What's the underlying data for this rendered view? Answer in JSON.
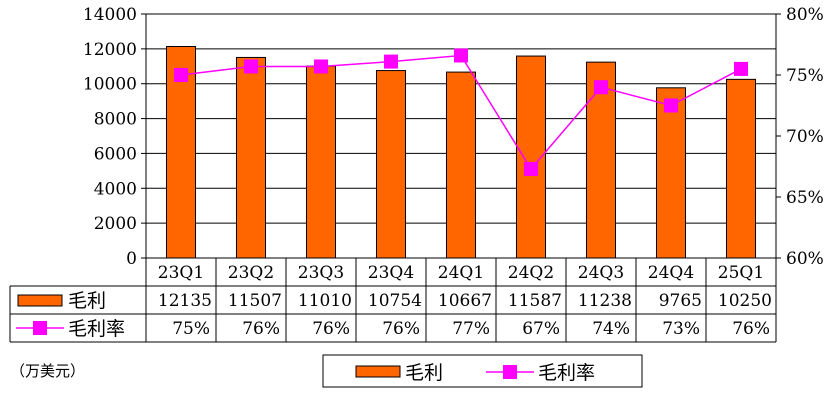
{
  "chart_data": {
    "type": "bar",
    "categories": [
      "23Q1",
      "23Q2",
      "23Q3",
      "23Q4",
      "24Q1",
      "24Q2",
      "24Q3",
      "24Q4",
      "25Q1"
    ],
    "series": [
      {
        "name": "毛利",
        "type": "bar",
        "axis": "left",
        "color": "#ff6600",
        "values": [
          12135,
          11507,
          11010,
          10754,
          10667,
          11587,
          11238,
          9765,
          10250
        ]
      },
      {
        "name": "毛利率",
        "type": "line",
        "axis": "right",
        "color": "#ff00ff",
        "values": [
          75,
          76,
          76,
          76,
          77,
          67,
          74,
          73,
          76
        ],
        "plot_values": [
          75.0,
          75.7,
          75.7,
          76.1,
          76.6,
          67.3,
          74.0,
          72.5,
          75.5
        ],
        "display": [
          "75%",
          "76%",
          "76%",
          "76%",
          "77%",
          "67%",
          "74%",
          "73%",
          "76%"
        ]
      }
    ],
    "y_left": {
      "ylim": [
        0,
        14000
      ],
      "ticks": [
        0,
        2000,
        4000,
        6000,
        8000,
        10000,
        12000,
        14000
      ],
      "tick_labels": [
        "0",
        "2000",
        "4000",
        "6000",
        "8000",
        "10000",
        "12000",
        "14000"
      ]
    },
    "y_right": {
      "ylim": [
        60,
        80
      ],
      "ticks": [
        60,
        65,
        70,
        75,
        80
      ],
      "tick_labels": [
        "60%",
        "65%",
        "70%",
        "75%",
        "80%"
      ]
    },
    "data_table": true,
    "grid": true,
    "legend": "bottom",
    "unit_note": "（万美元）"
  }
}
